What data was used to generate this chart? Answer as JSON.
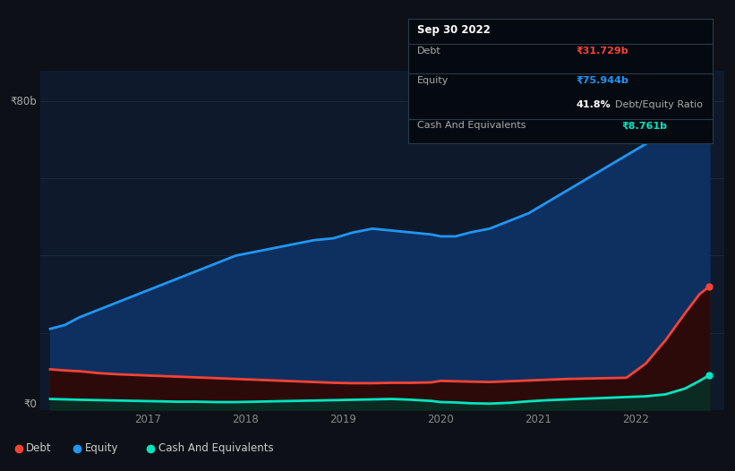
{
  "bg_color": "#0d1117",
  "plot_bg_color": "#0e1a2b",
  "grid_color": "#1a2a3a",
  "ylabel_80b": "₹80b",
  "ylabel_0": "₹0",
  "x_ticks": [
    2017,
    2018,
    2019,
    2020,
    2021,
    2022
  ],
  "equity_x": [
    2016.0,
    2016.15,
    2016.3,
    2016.5,
    2016.7,
    2016.9,
    2017.1,
    2017.3,
    2017.5,
    2017.7,
    2017.9,
    2018.1,
    2018.3,
    2018.5,
    2018.7,
    2018.9,
    2019.1,
    2019.3,
    2019.5,
    2019.7,
    2019.9,
    2020.0,
    2020.15,
    2020.3,
    2020.5,
    2020.7,
    2020.9,
    2021.1,
    2021.3,
    2021.5,
    2021.7,
    2021.9,
    2022.1,
    2022.3,
    2022.5,
    2022.65,
    2022.75
  ],
  "equity_y": [
    21,
    22,
    24,
    26,
    28,
    30,
    32,
    34,
    36,
    38,
    40,
    41,
    42,
    43,
    44,
    44.5,
    46,
    47,
    46.5,
    46,
    45.5,
    45,
    45,
    46,
    47,
    49,
    51,
    54,
    57,
    60,
    63,
    66,
    69,
    72,
    75,
    78,
    80
  ],
  "debt_x": [
    2016.0,
    2016.15,
    2016.3,
    2016.5,
    2016.7,
    2016.9,
    2017.1,
    2017.3,
    2017.5,
    2017.7,
    2017.9,
    2018.1,
    2018.3,
    2018.5,
    2018.7,
    2018.9,
    2019.1,
    2019.3,
    2019.5,
    2019.7,
    2019.9,
    2020.0,
    2020.15,
    2020.3,
    2020.5,
    2020.7,
    2020.9,
    2021.1,
    2021.3,
    2021.5,
    2021.7,
    2021.9,
    2022.1,
    2022.3,
    2022.5,
    2022.65,
    2022.75
  ],
  "debt_y": [
    10.5,
    10.2,
    10.0,
    9.5,
    9.2,
    9.0,
    8.8,
    8.6,
    8.4,
    8.2,
    8.0,
    7.8,
    7.6,
    7.4,
    7.2,
    7.0,
    6.9,
    6.9,
    7.0,
    7.0,
    7.1,
    7.5,
    7.4,
    7.3,
    7.2,
    7.4,
    7.6,
    7.8,
    8.0,
    8.1,
    8.2,
    8.3,
    12,
    18,
    25,
    30,
    32
  ],
  "cash_x": [
    2016.0,
    2016.15,
    2016.3,
    2016.5,
    2016.7,
    2016.9,
    2017.1,
    2017.3,
    2017.5,
    2017.7,
    2017.9,
    2018.1,
    2018.3,
    2018.5,
    2018.7,
    2018.9,
    2019.1,
    2019.3,
    2019.5,
    2019.7,
    2019.9,
    2020.0,
    2020.15,
    2020.3,
    2020.5,
    2020.7,
    2020.9,
    2021.1,
    2021.3,
    2021.5,
    2021.7,
    2021.9,
    2022.1,
    2022.3,
    2022.5,
    2022.65,
    2022.75
  ],
  "cash_y": [
    2.8,
    2.7,
    2.6,
    2.5,
    2.4,
    2.3,
    2.2,
    2.1,
    2.1,
    2.0,
    2.0,
    2.1,
    2.2,
    2.3,
    2.4,
    2.5,
    2.6,
    2.7,
    2.8,
    2.6,
    2.3,
    2.0,
    1.9,
    1.7,
    1.6,
    1.8,
    2.2,
    2.5,
    2.7,
    2.9,
    3.1,
    3.3,
    3.5,
    4.0,
    5.5,
    7.5,
    9.0
  ],
  "equity_color": "#2196f3",
  "debt_color": "#f44336",
  "cash_color": "#00e5c0",
  "equity_fill_color": "#0d3060",
  "debt_fill_color": "#2d0a0a",
  "cash_fill_color": "#0a2a22",
  "tooltip_bg": "#050a10",
  "tooltip_border": "#2a3a4a",
  "tooltip_title": "Sep 30 2022",
  "tooltip_debt_label": "Debt",
  "tooltip_debt_value": "₹31.729b",
  "tooltip_equity_label": "Equity",
  "tooltip_equity_value": "₹75.944b",
  "tooltip_ratio_pct": "41.8%",
  "tooltip_ratio_label": "Debt/Equity Ratio",
  "tooltip_cash_label": "Cash And Equivalents",
  "tooltip_cash_value": "₹8.761b",
  "legend_debt": "Debt",
  "legend_equity": "Equity",
  "legend_cash": "Cash And Equivalents",
  "ylim": [
    0,
    88
  ],
  "xlim": [
    2015.9,
    2022.9
  ]
}
